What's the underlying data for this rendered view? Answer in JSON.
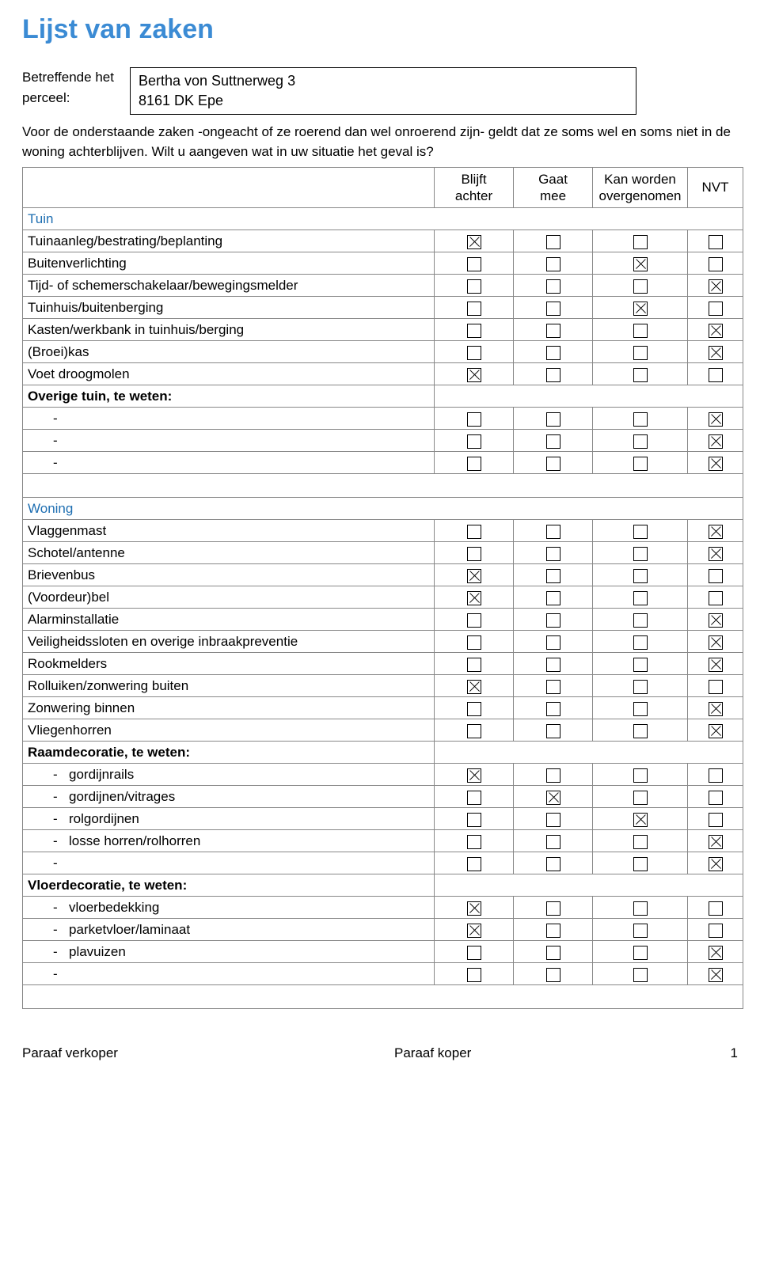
{
  "title": "Lijst van zaken",
  "title_color": "#3b8bd4",
  "intro_label_line1": "Betreffende het",
  "intro_label_line2": "perceel:",
  "address_line1": "Bertha von Suttnerweg 3",
  "address_line2": "8161 DK  Epe",
  "description": "Voor de onderstaande zaken -ongeacht of ze roerend dan wel onroerend zijn- geldt dat ze soms wel en soms niet in de woning achterblijven. Wilt u aangeven wat in uw situatie het geval is?",
  "headers": {
    "col1_line1": "Blijft",
    "col1_line2": "achter",
    "col2_line1": "Gaat",
    "col2_line2": "mee",
    "col3_line1": "Kan worden",
    "col3_line2": "overgenomen",
    "col4": "NVT"
  },
  "sections": [
    {
      "title": "Tuin",
      "rows": [
        {
          "label": "Tuinaanleg/bestrating/beplanting",
          "checks": [
            true,
            false,
            false,
            false
          ]
        },
        {
          "label": "Buitenverlichting",
          "checks": [
            false,
            false,
            true,
            false
          ]
        },
        {
          "label": "Tijd- of schemerschakelaar/bewegingsmelder",
          "checks": [
            false,
            false,
            false,
            true
          ]
        },
        {
          "label": "Tuinhuis/buitenberging",
          "checks": [
            false,
            false,
            true,
            false
          ]
        },
        {
          "label": "Kasten/werkbank in tuinhuis/berging",
          "checks": [
            false,
            false,
            false,
            true
          ]
        },
        {
          "label": "(Broei)kas",
          "checks": [
            false,
            false,
            false,
            true
          ]
        },
        {
          "label": "Voet droogmolen",
          "checks": [
            true,
            false,
            false,
            false
          ]
        },
        {
          "label": "Overige tuin, te weten:",
          "bold": true,
          "noChecks": true
        },
        {
          "sub": true,
          "label": "",
          "checks": [
            false,
            false,
            false,
            true
          ]
        },
        {
          "sub": true,
          "label": "",
          "checks": [
            false,
            false,
            false,
            true
          ]
        },
        {
          "sub": true,
          "label": "",
          "checks": [
            false,
            false,
            false,
            true
          ]
        }
      ]
    },
    {
      "title": "Woning",
      "spacerBefore": true,
      "rows": [
        {
          "label": "Vlaggenmast",
          "checks": [
            false,
            false,
            false,
            true
          ]
        },
        {
          "label": "Schotel/antenne",
          "checks": [
            false,
            false,
            false,
            true
          ]
        },
        {
          "label": "Brievenbus",
          "checks": [
            true,
            false,
            false,
            false
          ]
        },
        {
          "label": "(Voordeur)bel",
          "checks": [
            true,
            false,
            false,
            false
          ]
        },
        {
          "label": "Alarminstallatie",
          "checks": [
            false,
            false,
            false,
            true
          ]
        },
        {
          "label": "Veiligheidssloten en overige inbraakpreventie",
          "checks": [
            false,
            false,
            false,
            true
          ]
        },
        {
          "label": "Rookmelders",
          "checks": [
            false,
            false,
            false,
            true
          ]
        },
        {
          "label": "Rolluiken/zonwering buiten",
          "checks": [
            true,
            false,
            false,
            false
          ]
        },
        {
          "label": "Zonwering binnen",
          "checks": [
            false,
            false,
            false,
            true
          ]
        },
        {
          "label": "Vliegenhorren",
          "checks": [
            false,
            false,
            false,
            true
          ]
        },
        {
          "label": "Raamdecoratie, te weten:",
          "bold": true,
          "noChecks": true
        },
        {
          "sub": true,
          "label": "gordijnrails",
          "checks": [
            true,
            false,
            false,
            false
          ]
        },
        {
          "sub": true,
          "label": "gordijnen/vitrages",
          "checks": [
            false,
            true,
            false,
            false
          ]
        },
        {
          "sub": true,
          "label": "rolgordijnen",
          "checks": [
            false,
            false,
            true,
            false
          ]
        },
        {
          "sub": true,
          "label": "losse horren/rolhorren",
          "checks": [
            false,
            false,
            false,
            true
          ]
        },
        {
          "sub": true,
          "label": "",
          "checks": [
            false,
            false,
            false,
            true
          ]
        },
        {
          "label": "Vloerdecoratie, te weten:",
          "bold": true,
          "noChecks": true
        },
        {
          "sub": true,
          "label": "vloerbedekking",
          "checks": [
            true,
            false,
            false,
            false
          ]
        },
        {
          "sub": true,
          "label": "parketvloer/laminaat",
          "checks": [
            true,
            false,
            false,
            false
          ]
        },
        {
          "sub": true,
          "label": "plavuizen",
          "checks": [
            false,
            false,
            false,
            true
          ]
        },
        {
          "sub": true,
          "label": "",
          "checks": [
            false,
            false,
            false,
            true
          ]
        }
      ],
      "trailingSpacer": true
    }
  ],
  "footer": {
    "left": "Paraaf verkoper",
    "mid": "Paraaf koper",
    "page": "1"
  }
}
